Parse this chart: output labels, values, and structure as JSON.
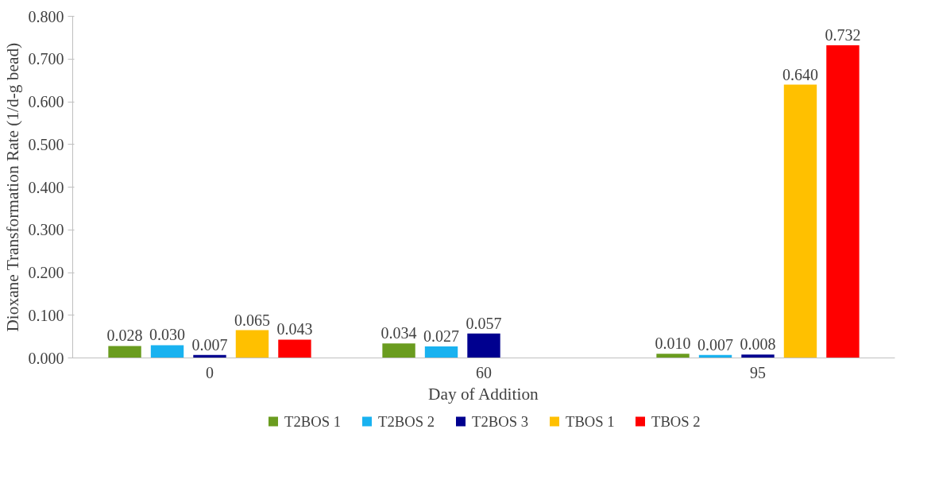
{
  "chart_data": {
    "type": "bar",
    "xlabel": "Day of Addition",
    "ylabel": "Dioxane Transformation Rate (1/d-g bead)",
    "categories": [
      "0",
      "60",
      "95"
    ],
    "series": [
      {
        "name": "T2BOS 1",
        "color": "#6a9c1f",
        "values": [
          0.028,
          0.034,
          0.01
        ],
        "value_labels": [
          "0.028",
          "0.034",
          "0.010"
        ]
      },
      {
        "name": "T2BOS 2",
        "color": "#19b2f0",
        "values": [
          0.03,
          0.027,
          0.007
        ],
        "value_labels": [
          "0.030",
          "0.027",
          "0.007"
        ]
      },
      {
        "name": "T2BOS 3",
        "color": "#00008f",
        "values": [
          0.007,
          0.057,
          0.008
        ],
        "value_labels": [
          "0.007",
          "0.057",
          "0.008"
        ]
      },
      {
        "name": "TBOS 1",
        "color": "#ffc000",
        "values": [
          0.065,
          null,
          0.64
        ],
        "value_labels": [
          "0.065",
          null,
          "0.640"
        ]
      },
      {
        "name": "TBOS 2",
        "color": "#ff0000",
        "values": [
          0.043,
          null,
          0.732
        ],
        "value_labels": [
          "0.043",
          null,
          "0.732"
        ]
      }
    ],
    "ylim": [
      0,
      0.8
    ],
    "yticks": [
      {
        "value": 0,
        "label": "0.000"
      },
      {
        "value": 0.1,
        "label": "0.100"
      },
      {
        "value": 0.2,
        "label": "0.200"
      },
      {
        "value": 0.3,
        "label": "0.300"
      },
      {
        "value": 0.4,
        "label": "0.400"
      },
      {
        "value": 0.5,
        "label": "0.500"
      },
      {
        "value": 0.6,
        "label": "0.600"
      },
      {
        "value": 0.7,
        "label": "0.700"
      },
      {
        "value": 0.8,
        "label": "0.800"
      }
    ],
    "grid": false,
    "legend": "bottom"
  }
}
